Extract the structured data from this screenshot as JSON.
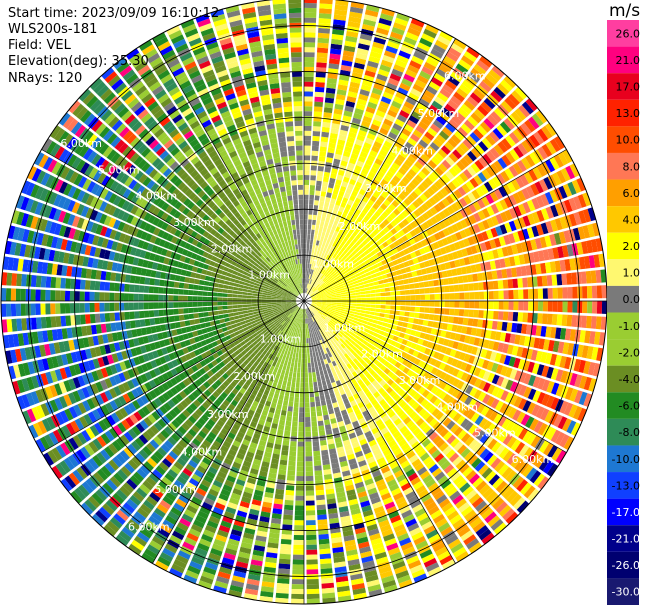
{
  "header": {
    "start_time": "Start time: 2023/09/09 16:10:12",
    "instrument": "WLS200s-181",
    "field": "Field: VEL",
    "elevation": "Elevation(deg): 35.30",
    "nrays": "NRays: 120"
  },
  "range_rings": [
    {
      "km": 1,
      "label": "1.00km"
    },
    {
      "km": 2,
      "label": "2.00km"
    },
    {
      "km": 3,
      "label": "3.00km"
    },
    {
      "km": 4,
      "label": "4.00km"
    },
    {
      "km": 5,
      "label": "5.00km"
    },
    {
      "km": 6,
      "label": "6.00km"
    }
  ],
  "max_range_km": 6.6,
  "colorbar": {
    "unit": "m/s",
    "ticks": [
      "26.0",
      "21.0",
      "17.0",
      "13.0",
      "10.0",
      "8.0",
      "6.0",
      "4.0",
      "2.0",
      "1.0",
      "0.0",
      "-1.0",
      "-2.0",
      "-4.0",
      "-6.0",
      "-8.0",
      "-10.0",
      "-13.0",
      "-17.0",
      "-21.0",
      "-26.0",
      "-30.0"
    ],
    "colors": [
      "#ff3ea0",
      "#ff007f",
      "#e8001e",
      "#ff2200",
      "#ff4d00",
      "#ff7755",
      "#ff9f00",
      "#ffc800",
      "#ffff00",
      "#fff870",
      "#7a7a7a",
      "#9acd32",
      "#9acd32",
      "#6b8e23",
      "#228b22",
      "#2e8b57",
      "#1e78d2",
      "#1040ff",
      "#0000ff",
      "#00008b",
      "#000070",
      "#191970"
    ],
    "highlight_colors": {
      "approaching": "#1e78d2",
      "receding": "#ffa500",
      "near_zero": "#7a7a7a"
    }
  }
}
